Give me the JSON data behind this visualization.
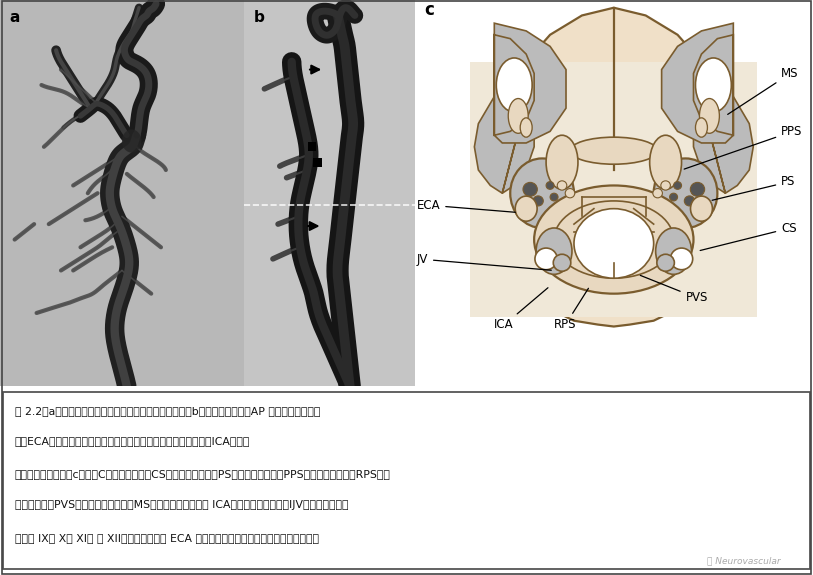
{
  "fig_width": 8.13,
  "fig_height": 5.75,
  "dpi": 100,
  "bg_white": "#ffffff",
  "bg_light_gray": "#d8d8d8",
  "angio_bg_a": "#b8b8b8",
  "angio_bg_b": "#c5c5c5",
  "vessel_dark": "#1a1a1a",
  "vessel_mid": "#303030",
  "vessel_light": "#555555",
  "diagram_bg": "#f0e0c8",
  "diagram_white_panel": "#f5ece0",
  "struct_color": "#7a5c2e",
  "gray_fill": "#bbbbbb",
  "light_beige": "#e8d8c0",
  "white_fill": "#ffffff",
  "label_a": "a",
  "label_b": "b",
  "label_c": "c",
  "ms": "MS",
  "pps": "PPS",
  "ps": "PS",
  "eca": "ECA",
  "jv": "JV",
  "ica": "ICA",
  "rps": "RPS",
  "pvs": "PVS",
  "cs": "CS",
  "cap1": "图 2.2（a）颢总动脉造影，侧位，显示颢外和颢内动脉（b）颢总动脉造影，AP 前后位显示颢外动",
  "cap2": "脉（ECA，筭头），首先颢内动脉内侧，以后位于颢内动脉内侧（ICA）。⤴",
  "cap3": "虚线与轴面相对应（c）。（C）颢动脉间隙（CS），由腔腺包围（PS），和咽旁间隙（PPS），和咽后间隙（RPS），",
  "cap4": "和椎周间隙（PVS）。和嘱嚼肌间隙（MS）。颢动脉间隙显示 ICA（前方）和颢静脉（IJV、后方），连同",
  "cap5": "颌神经 IX， X， XI， 和 XII。在腔腺间隙， ECA 向后和向前的下颌后静脉。面神经侧方进行",
  "watermark": "Ⓝ Neurovascular"
}
